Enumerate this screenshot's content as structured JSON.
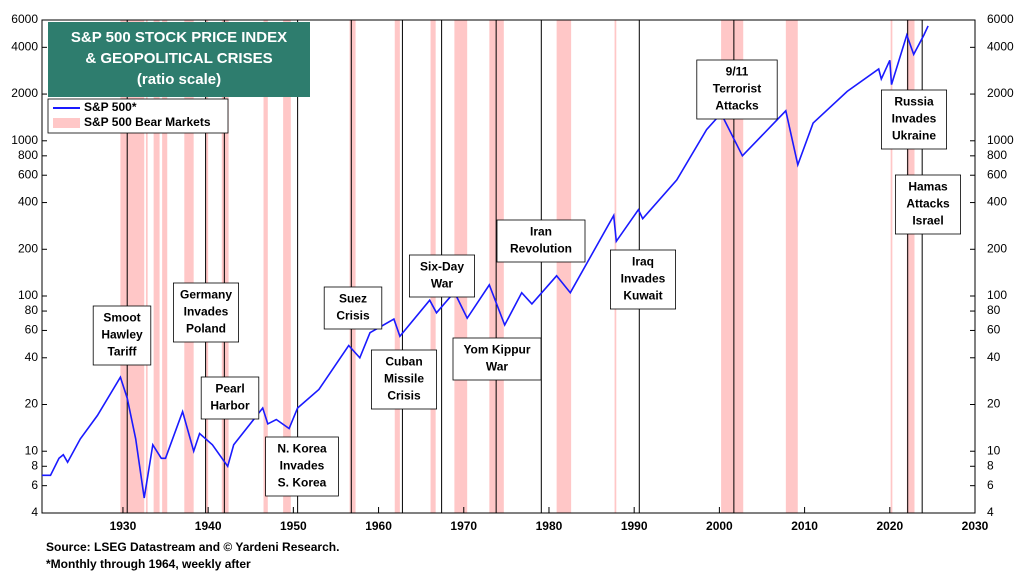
{
  "chart_data": {
    "type": "line",
    "title": [
      "S&P 500 STOCK PRICE INDEX",
      "& GEOPOLITICAL CRISES",
      "(ratio scale)"
    ],
    "log_scale": true,
    "xlim": [
      1920.5,
      2030
    ],
    "xticks": [
      1930,
      1940,
      1950,
      1960,
      1970,
      1980,
      1990,
      2000,
      2010,
      2020,
      2030
    ],
    "ylim": [
      4,
      6000
    ],
    "yticks": [
      4,
      6,
      8,
      10,
      20,
      40,
      60,
      80,
      100,
      200,
      400,
      600,
      800,
      1000,
      2000,
      4000,
      6000
    ],
    "series": [
      {
        "name": "S&P 500*",
        "color": "#1a1aff",
        "x": [
          1920.5,
          1921.5,
          1922.5,
          1923,
          1923.5,
          1925,
          1927,
          1929.7,
          1930.5,
          1931.5,
          1932.5,
          1933.5,
          1934.5,
          1935,
          1937,
          1938.3,
          1939,
          1940.5,
          1942.3,
          1943,
          1946.4,
          1947,
          1948,
          1949.5,
          1950.5,
          1953,
          1956.5,
          1957.8,
          1959,
          1961.8,
          1962.5,
          1966,
          1966.8,
          1968.9,
          1970.4,
          1973,
          1974.8,
          1976.8,
          1978,
          1980.9,
          1982.5,
          1987.6,
          1987.9,
          1990.5,
          1991,
          1995,
          1998.5,
          2000.2,
          2002.7,
          2007.8,
          2009.2,
          2011,
          2015,
          2018.7,
          2019,
          2020,
          2020.2,
          2022,
          2022.8,
          2024,
          2024.5
        ],
        "values": [
          7,
          7,
          9,
          9.5,
          8.5,
          12,
          17,
          30,
          22,
          12,
          5,
          11,
          9,
          9,
          18,
          10,
          13,
          11,
          8,
          11,
          19,
          15,
          16,
          14,
          19,
          25,
          48,
          40,
          58,
          71,
          55,
          94,
          78,
          106,
          72,
          118,
          65,
          105,
          89,
          135,
          105,
          330,
          225,
          360,
          315,
          560,
          1180,
          1500,
          800,
          1560,
          700,
          1300,
          2080,
          2900,
          2500,
          3300,
          2300,
          4800,
          3600,
          4800,
          5500
        ]
      }
    ],
    "bear_markets": {
      "name": "S&P 500 Bear Markets",
      "color": "#ffc7c7",
      "periods": [
        [
          1929.7,
          1932.5
        ],
        [
          1932.7,
          1932.9
        ],
        [
          1933.6,
          1934.3
        ],
        [
          1934.6,
          1935.2
        ],
        [
          1937.2,
          1938.3
        ],
        [
          1939.7,
          1940.0
        ],
        [
          1941.6,
          1942.4
        ],
        [
          1946.5,
          1947.0
        ],
        [
          1948.8,
          1949.7
        ],
        [
          1956.6,
          1957.3
        ],
        [
          1961.9,
          1962.5
        ],
        [
          1966.1,
          1966.7
        ],
        [
          1968.9,
          1970.4
        ],
        [
          1973.0,
          1974.7
        ],
        [
          1980.9,
          1982.6
        ],
        [
          1987.7,
          1987.9
        ],
        [
          2000.2,
          2002.8
        ],
        [
          2007.8,
          2009.2
        ],
        [
          2020.1,
          2020.3
        ],
        [
          2022.0,
          2022.9
        ]
      ]
    },
    "events": [
      {
        "year": 1930.5,
        "label": [
          "Smoot",
          "Hawley",
          "Tariff"
        ]
      },
      {
        "year": 1939.7,
        "label": [
          "Germany",
          "Invades",
          "Poland"
        ]
      },
      {
        "year": 1941.9,
        "label": [
          "Pearl",
          "Harbor"
        ]
      },
      {
        "year": 1950.5,
        "label": [
          "N. Korea",
          "Invades",
          "S. Korea"
        ]
      },
      {
        "year": 1956.8,
        "label": [
          "Suez",
          "Crisis"
        ]
      },
      {
        "year": 1962.8,
        "label": [
          "Cuban",
          "Missile",
          "Crisis"
        ]
      },
      {
        "year": 1967.4,
        "label": [
          "Six-Day",
          "War"
        ]
      },
      {
        "year": 1973.8,
        "label": [
          "Yom Kippur",
          "War"
        ]
      },
      {
        "year": 1979.1,
        "label": [
          "Iran",
          "Revolution"
        ]
      },
      {
        "year": 1990.6,
        "label": [
          "Iraq",
          "Invades",
          "Kuwait"
        ]
      },
      {
        "year": 2001.7,
        "label": [
          "9/11",
          "Terrorist",
          "Attacks"
        ]
      },
      {
        "year": 2022.1,
        "label": [
          "Russia",
          "Invades",
          "Ukraine"
        ]
      },
      {
        "year": 2023.8,
        "label": [
          "Hamas",
          "Attacks",
          "Israel"
        ]
      }
    ],
    "source": "Source: LSEG Datastream and © Yardeni Research.",
    "note": "*Monthly through 1964, weekly after"
  }
}
